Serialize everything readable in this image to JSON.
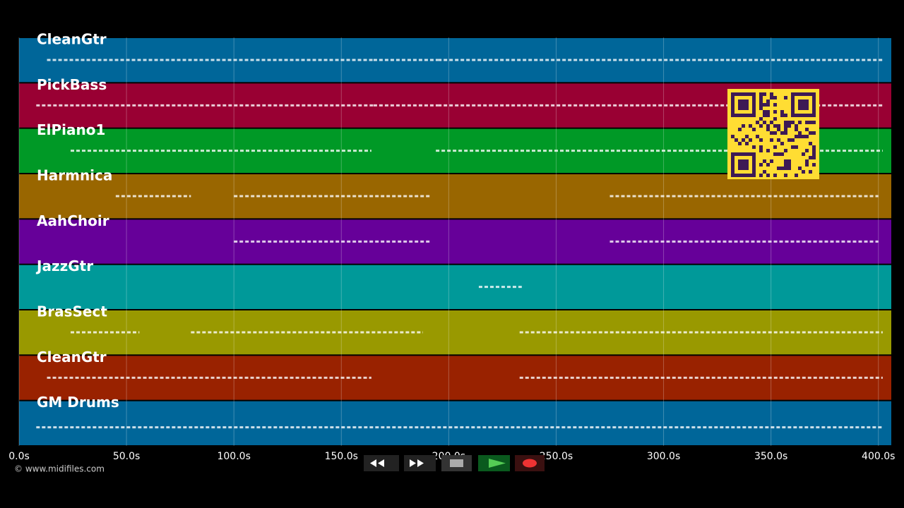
{
  "tracks": [
    {
      "name": "CleanGtr",
      "color": "#006699",
      "segments": [
        [
          13,
          165
        ],
        [
          165,
          195
        ],
        [
          195,
          402
        ]
      ]
    },
    {
      "name": "PickBass",
      "color": "#990033",
      "segments": [
        [
          8,
          165
        ],
        [
          165,
          195
        ],
        [
          195,
          402
        ]
      ]
    },
    {
      "name": "ElPiano1",
      "color": "#009926",
      "segments": [
        [
          24,
          164
        ],
        [
          194,
          215
        ],
        [
          215,
          402
        ]
      ]
    },
    {
      "name": "Harmnica",
      "color": "#996600",
      "segments": [
        [
          45,
          80
        ],
        [
          100,
          192
        ],
        [
          275,
          400
        ]
      ]
    },
    {
      "name": "AahChoir",
      "color": "#660099",
      "segments": [
        [
          100,
          192
        ],
        [
          275,
          400
        ]
      ]
    },
    {
      "name": "JazzGtr",
      "color": "#009999",
      "segments": [
        [
          214,
          234
        ]
      ]
    },
    {
      "name": "BrasSect",
      "color": "#999900",
      "segments": [
        [
          24,
          56
        ],
        [
          80,
          188
        ],
        [
          233,
          402
        ]
      ]
    },
    {
      "name": "CleanGtr",
      "color": "#992200",
      "segments": [
        [
          13,
          164
        ],
        [
          233,
          402
        ]
      ]
    },
    {
      "name": "GM Drums",
      "color": "#006699",
      "segments": [
        [
          8,
          402
        ]
      ]
    }
  ],
  "xlim": [
    0,
    406
  ],
  "xticks": [
    {
      "value": 0,
      "label": "0.0s"
    },
    {
      "value": 50,
      "label": "50.0s"
    },
    {
      "value": 100,
      "label": "100.0s"
    },
    {
      "value": 150,
      "label": "150.0s"
    },
    {
      "value": 200,
      "label": "200.0s"
    },
    {
      "value": 250,
      "label": "250.0s"
    },
    {
      "value": 300,
      "label": "300.0s"
    },
    {
      "value": 350,
      "label": "350.0s"
    },
    {
      "value": 400,
      "label": "400.0s"
    }
  ],
  "copyright": "© www.midifiles.com"
}
